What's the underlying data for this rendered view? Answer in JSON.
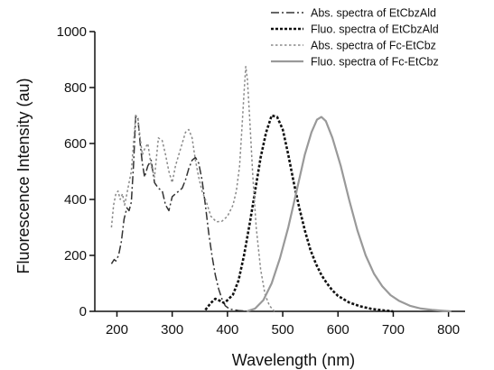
{
  "chart_data": {
    "type": "line",
    "title": "",
    "xlabel": "Wavelength (nm)",
    "ylabel": "Fluorescence Intensity (au)",
    "xlim": [
      160,
      830
    ],
    "ylim": [
      0,
      1000
    ],
    "xticks": [
      200,
      300,
      400,
      500,
      600,
      700,
      800
    ],
    "yticks": [
      0,
      200,
      400,
      600,
      800,
      1000
    ],
    "legend_position": "top-right",
    "grid": false,
    "series": [
      {
        "name": "Abs. spectra of EtCbzAld",
        "style": "dashdot",
        "color": "#333333",
        "points": [
          [
            190,
            170
          ],
          [
            195,
            185
          ],
          [
            198,
            180
          ],
          [
            203,
            200
          ],
          [
            208,
            250
          ],
          [
            213,
            330
          ],
          [
            218,
            370
          ],
          [
            222,
            360
          ],
          [
            226,
            390
          ],
          [
            230,
            520
          ],
          [
            234,
            700
          ],
          [
            238,
            690
          ],
          [
            242,
            600
          ],
          [
            246,
            530
          ],
          [
            250,
            480
          ],
          [
            256,
            520
          ],
          [
            262,
            540
          ],
          [
            268,
            460
          ],
          [
            275,
            440
          ],
          [
            282,
            430
          ],
          [
            288,
            380
          ],
          [
            294,
            360
          ],
          [
            300,
            410
          ],
          [
            306,
            420
          ],
          [
            312,
            430
          ],
          [
            318,
            440
          ],
          [
            324,
            470
          ],
          [
            330,
            510
          ],
          [
            336,
            540
          ],
          [
            342,
            550
          ],
          [
            348,
            530
          ],
          [
            354,
            470
          ],
          [
            360,
            380
          ],
          [
            366,
            280
          ],
          [
            372,
            200
          ],
          [
            378,
            130
          ],
          [
            384,
            80
          ],
          [
            390,
            45
          ],
          [
            396,
            20
          ],
          [
            404,
            8
          ],
          [
            420,
            3
          ],
          [
            440,
            0
          ]
        ]
      },
      {
        "name": "Fluo. spectra of EtCbzAld",
        "style": "densely-dotted",
        "color": "#111111",
        "points": [
          [
            360,
            5
          ],
          [
            370,
            30
          ],
          [
            378,
            45
          ],
          [
            386,
            38
          ],
          [
            394,
            30
          ],
          [
            400,
            40
          ],
          [
            410,
            60
          ],
          [
            420,
            110
          ],
          [
            430,
            200
          ],
          [
            440,
            310
          ],
          [
            450,
            430
          ],
          [
            460,
            550
          ],
          [
            470,
            640
          ],
          [
            480,
            700
          ],
          [
            490,
            695
          ],
          [
            500,
            650
          ],
          [
            510,
            560
          ],
          [
            520,
            460
          ],
          [
            530,
            370
          ],
          [
            540,
            290
          ],
          [
            550,
            220
          ],
          [
            560,
            170
          ],
          [
            570,
            130
          ],
          [
            580,
            100
          ],
          [
            590,
            75
          ],
          [
            600,
            55
          ],
          [
            620,
            32
          ],
          [
            640,
            18
          ],
          [
            660,
            9
          ],
          [
            680,
            4
          ],
          [
            700,
            0
          ]
        ]
      },
      {
        "name": "Abs. spectra of Fc-EtCbz",
        "style": "dotted",
        "color": "#8a8a8a",
        "points": [
          [
            190,
            300
          ],
          [
            194,
            380
          ],
          [
            198,
            420
          ],
          [
            202,
            430
          ],
          [
            206,
            400
          ],
          [
            210,
            420
          ],
          [
            214,
            380
          ],
          [
            218,
            420
          ],
          [
            222,
            460
          ],
          [
            226,
            500
          ],
          [
            230,
            600
          ],
          [
            234,
            700
          ],
          [
            238,
            690
          ],
          [
            242,
            620
          ],
          [
            246,
            560
          ],
          [
            250,
            580
          ],
          [
            256,
            600
          ],
          [
            262,
            520
          ],
          [
            268,
            480
          ],
          [
            275,
            620
          ],
          [
            282,
            610
          ],
          [
            288,
            560
          ],
          [
            294,
            500
          ],
          [
            300,
            460
          ],
          [
            306,
            520
          ],
          [
            312,
            560
          ],
          [
            318,
            600
          ],
          [
            324,
            640
          ],
          [
            330,
            650
          ],
          [
            336,
            620
          ],
          [
            342,
            540
          ],
          [
            348,
            480
          ],
          [
            354,
            430
          ],
          [
            362,
            390
          ],
          [
            370,
            340
          ],
          [
            380,
            320
          ],
          [
            390,
            322
          ],
          [
            400,
            340
          ],
          [
            410,
            380
          ],
          [
            416,
            430
          ],
          [
            422,
            520
          ],
          [
            426,
            650
          ],
          [
            430,
            780
          ],
          [
            433,
            875
          ],
          [
            436,
            830
          ],
          [
            440,
            700
          ],
          [
            446,
            480
          ],
          [
            452,
            300
          ],
          [
            460,
            150
          ],
          [
            468,
            60
          ],
          [
            476,
            20
          ],
          [
            485,
            0
          ]
        ]
      },
      {
        "name": "Fluo. spectra of Fc-EtCbz",
        "style": "solid",
        "color": "#999999",
        "points": [
          [
            435,
            0
          ],
          [
            450,
            10
          ],
          [
            465,
            40
          ],
          [
            480,
            100
          ],
          [
            495,
            190
          ],
          [
            510,
            300
          ],
          [
            525,
            430
          ],
          [
            540,
            560
          ],
          [
            552,
            640
          ],
          [
            562,
            685
          ],
          [
            570,
            695
          ],
          [
            578,
            680
          ],
          [
            590,
            620
          ],
          [
            605,
            520
          ],
          [
            620,
            400
          ],
          [
            635,
            290
          ],
          [
            650,
            200
          ],
          [
            665,
            135
          ],
          [
            680,
            90
          ],
          [
            695,
            58
          ],
          [
            710,
            38
          ],
          [
            730,
            20
          ],
          [
            750,
            10
          ],
          [
            770,
            5
          ],
          [
            790,
            2
          ],
          [
            805,
            0
          ]
        ]
      }
    ]
  }
}
